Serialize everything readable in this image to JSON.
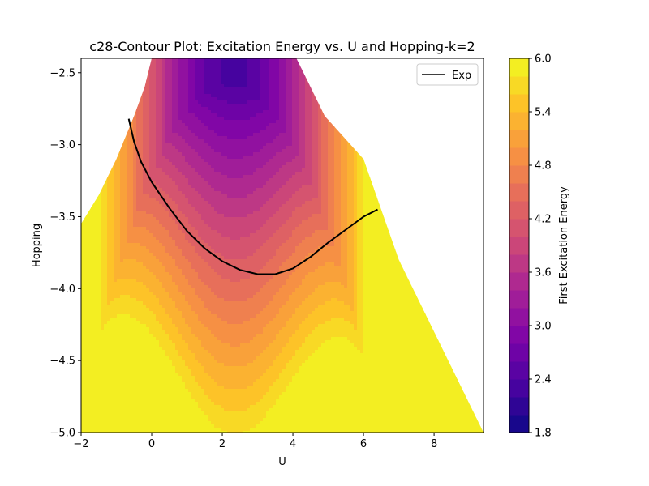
{
  "chart_data": {
    "type": "contour",
    "title": "c28-Contour Plot: Excitation Energy vs. U and Hopping-k=2",
    "xlabel": "U",
    "ylabel": "Hopping",
    "xlim": [
      -2,
      9.4
    ],
    "ylim": [
      -5.0,
      -2.4
    ],
    "x_ticks": [
      -2,
      0,
      2,
      4,
      6,
      8
    ],
    "y_ticks": [
      -5.0,
      -4.5,
      -4.0,
      -3.5,
      -3.0,
      -2.5
    ],
    "x_tick_labels": [
      "−2",
      "0",
      "2",
      "4",
      "6",
      "8"
    ],
    "y_tick_labels": [
      "−5.0",
      "−4.5",
      "−4.0",
      "−3.5",
      "−3.0",
      "−2.5"
    ],
    "colorbar": {
      "label": "First Excitation Energy",
      "range": [
        1.8,
        6.0
      ],
      "ticks": [
        1.8,
        2.4,
        3.0,
        3.6,
        4.2,
        4.8,
        5.4,
        6.0
      ],
      "tick_labels": [
        "1.8",
        "2.4",
        "3.0",
        "3.6",
        "4.2",
        "4.8",
        "5.4",
        "6.0"
      ],
      "levels": 21,
      "colormap": "plasma"
    },
    "domain_boundary": {
      "left": [
        [
          -2.0,
          -3.55
        ],
        [
          -1.5,
          -3.35
        ],
        [
          -1.0,
          -3.1
        ],
        [
          -0.5,
          -2.8
        ],
        [
          -0.2,
          -2.6
        ],
        [
          0.0,
          -2.4
        ]
      ],
      "right": [
        [
          4.1,
          -2.4
        ],
        [
          4.9,
          -2.8
        ],
        [
          6.0,
          -3.1
        ],
        [
          7.0,
          -3.8
        ],
        [
          8.0,
          -4.3
        ],
        [
          9.4,
          -5.0
        ]
      ]
    },
    "field_model": "E(U,t) = 2.35 + 1.55*(t_c(U) - t)^0.9 + 0.42*(U - 2.3)^2/(1 + 0.05*(U-2.3)^2); t_c(U) = -2.58 - 0.13*(U-2.2)^2 (shape approximated)",
    "series": [
      {
        "name": "Exp",
        "color": "#000000",
        "x": [
          -0.65,
          -0.5,
          -0.3,
          0.0,
          0.5,
          1.0,
          1.5,
          2.0,
          2.5,
          3.0,
          3.5,
          4.0,
          4.5,
          5.0,
          5.5,
          6.0,
          6.4
        ],
        "y": [
          -2.82,
          -2.98,
          -3.12,
          -3.26,
          -3.44,
          -3.6,
          -3.72,
          -3.81,
          -3.87,
          -3.9,
          -3.9,
          -3.86,
          -3.78,
          -3.68,
          -3.59,
          -3.5,
          -3.45
        ]
      }
    ],
    "legend": {
      "position": "top-right",
      "entries": [
        "Exp"
      ]
    }
  }
}
